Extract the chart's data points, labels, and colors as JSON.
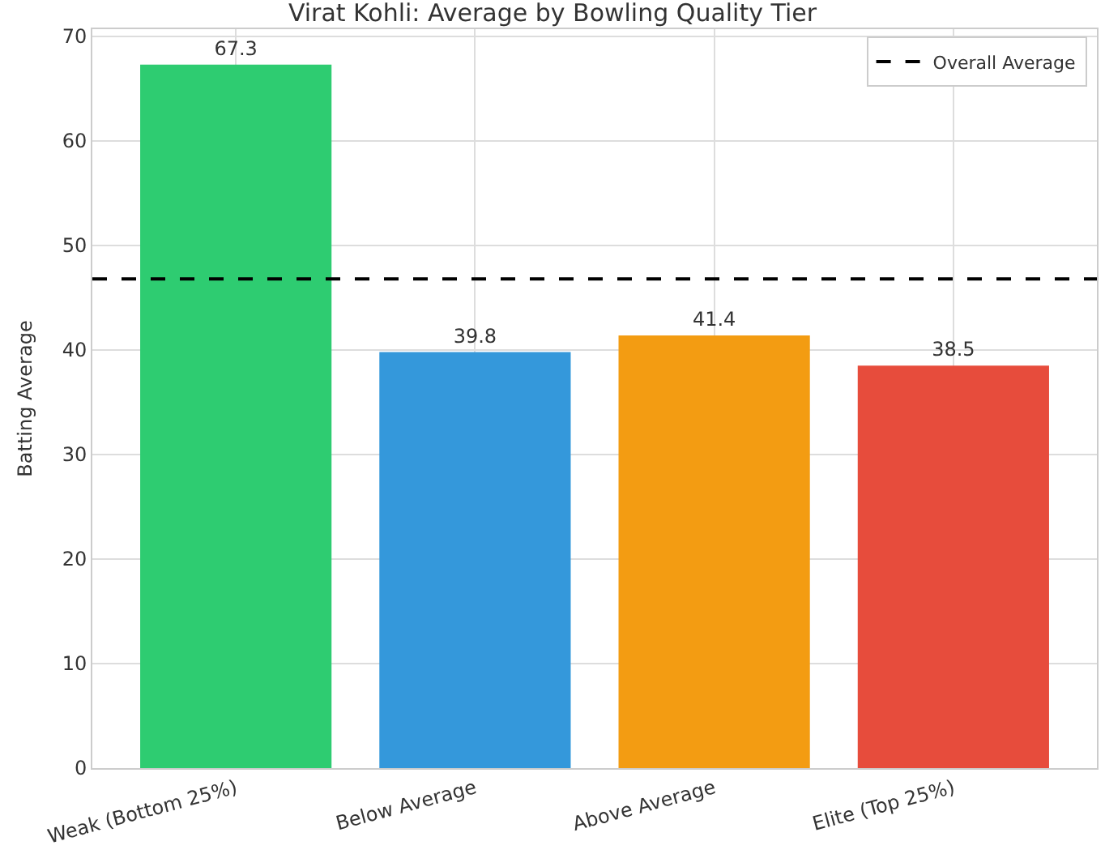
{
  "chart_data": {
    "type": "bar",
    "title": "Virat Kohli: Average by Bowling Quality Tier",
    "ylabel": "Batting Average",
    "categories": [
      "Weak (Bottom 25%)",
      "Below Average",
      "Above Average",
      "Elite (Top 25%)"
    ],
    "values": [
      67.3,
      39.8,
      41.4,
      38.5
    ],
    "colors": [
      "#2ecc71",
      "#3498db",
      "#f39c12",
      "#e74c3c"
    ],
    "data_labels": true,
    "ylim": [
      0,
      70.7
    ],
    "yticks": [
      0,
      10,
      20,
      30,
      40,
      50,
      60,
      70
    ],
    "ref_lines": [
      {
        "axis": "y",
        "value": 46.8,
        "label": "Overall Average",
        "color": "#000000",
        "line_style": "dashed"
      }
    ],
    "grid": true,
    "legend": "top right"
  }
}
